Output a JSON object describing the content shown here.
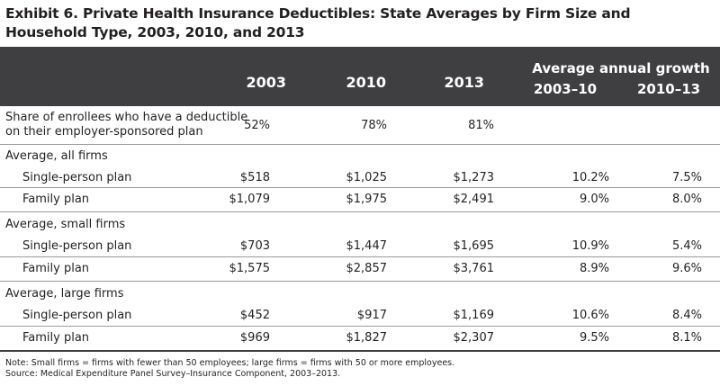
{
  "title": "Exhibit 6. Private Health Insurance Deductibles: State Averages by Firm Size and Household Type, 2003, 2010, and 2013",
  "header": {
    "years": [
      "2003",
      "2010",
      "2013"
    ],
    "growth_label": "Average annual growth",
    "growth_periods": [
      "2003–10",
      "2010–13"
    ]
  },
  "share_row": {
    "label_line1": "Share of enrollees who have a deductible",
    "label_line2": "on their employer-sponsored plan",
    "values": [
      "52%",
      "78%",
      "81%"
    ]
  },
  "sections": [
    {
      "label": "Average, all firms",
      "rows": [
        {
          "label": "Single-person plan",
          "v2003": "$518",
          "v2010": "$1,025",
          "v2013": "$1,273",
          "g1": "10.2%",
          "g2": "7.5%"
        },
        {
          "label": "Family plan",
          "v2003": "$1,079",
          "v2010": "$1,975",
          "v2013": "$2,491",
          "g1": "9.0%",
          "g2": "8.0%"
        }
      ]
    },
    {
      "label": "Average, small firms",
      "rows": [
        {
          "label": "Single-person plan",
          "v2003": "$703",
          "v2010": "$1,447",
          "v2013": "$1,695",
          "g1": "10.9%",
          "g2": "5.4%"
        },
        {
          "label": "Family plan",
          "v2003": "$1,575",
          "v2010": "$2,857",
          "v2013": "$3,761",
          "g1": "8.9%",
          "g2": "9.6%"
        }
      ]
    },
    {
      "label": "Average, large firms",
      "rows": [
        {
          "label": "Single-person plan",
          "v2003": "$452",
          "v2010": "$917",
          "v2013": "$1,169",
          "g1": "10.6%",
          "g2": "8.4%"
        },
        {
          "label": "Family plan",
          "v2003": "$969",
          "v2010": "$1,827",
          "v2013": "$2,307",
          "g1": "9.5%",
          "g2": "8.1%"
        }
      ]
    }
  ],
  "notes": {
    "note": "Note: Small firms = firms with fewer than 50 employees; large firms = firms with 50 or more employees.",
    "source": "Source: Medical Expenditure Panel Survey–Insurance Component, 2003–2013."
  }
}
